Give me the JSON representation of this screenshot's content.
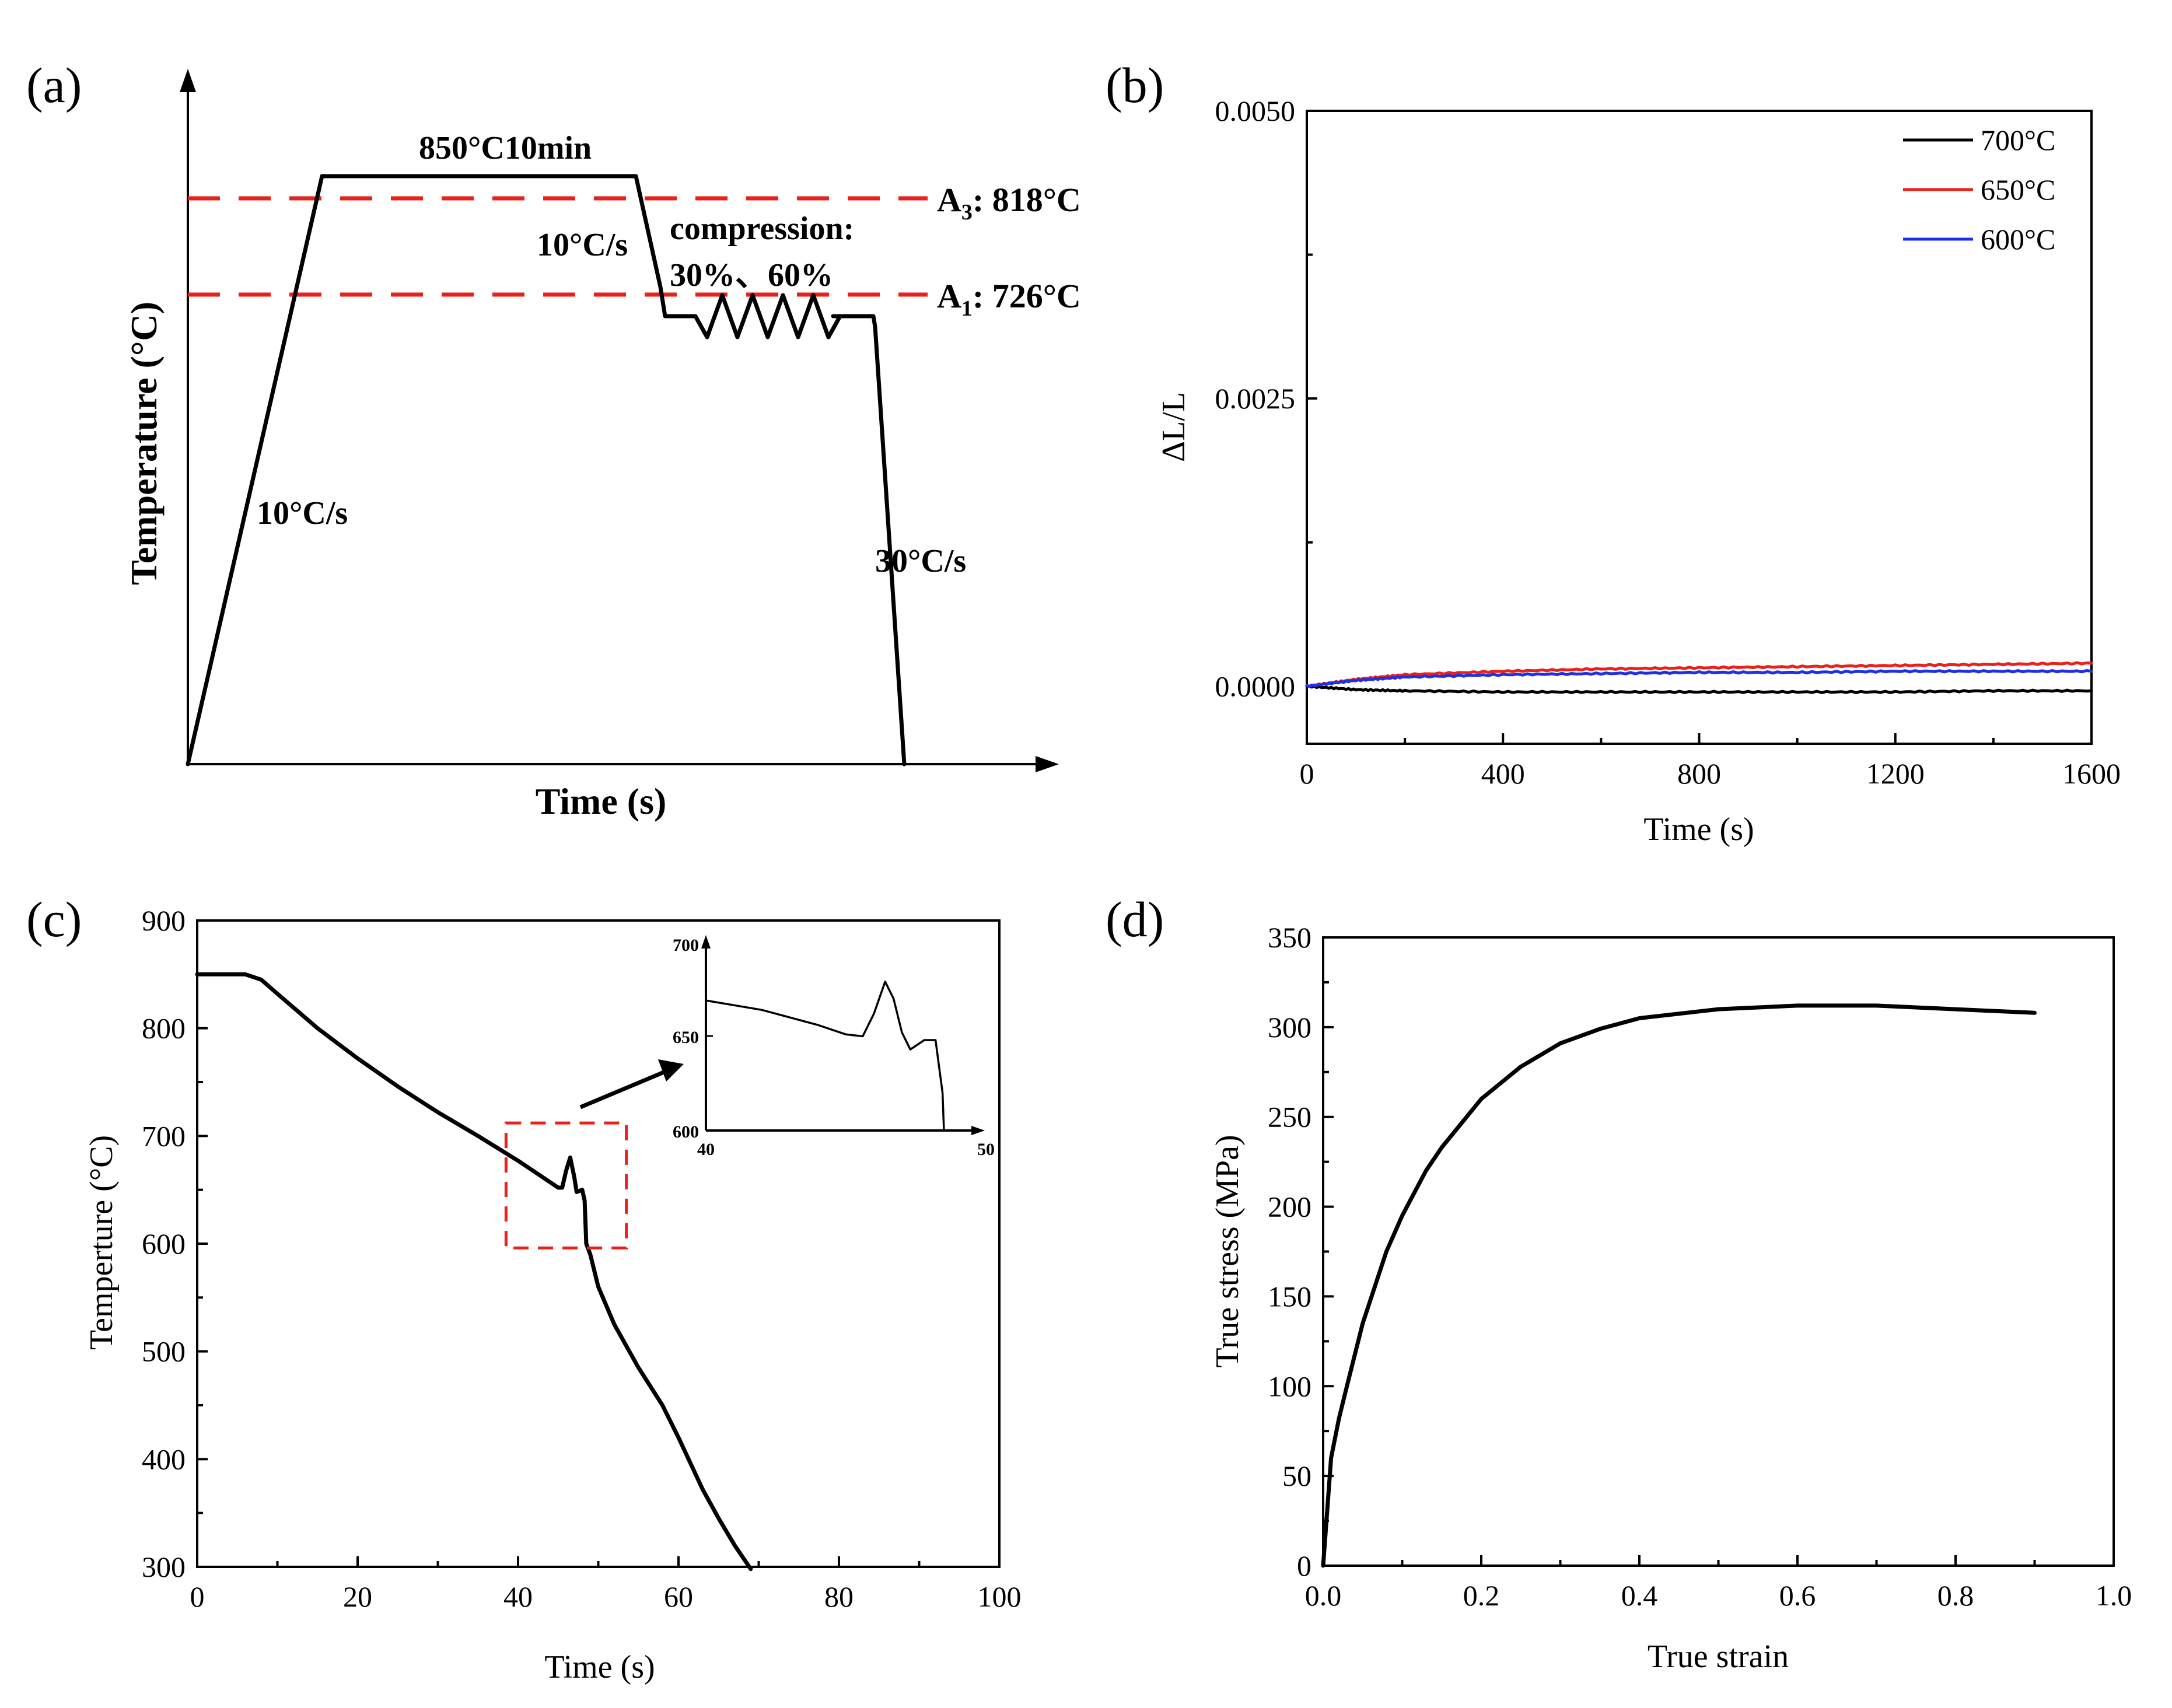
{
  "figure": {
    "panels": [
      "(a)",
      "(b)",
      "(c)",
      "(d)"
    ]
  },
  "chart_data": [
    {
      "id": "a",
      "type": "line",
      "title": "",
      "xlabel": "Time (s)",
      "ylabel": "Temperature (°C)",
      "schedule": {
        "hold_label": "850°C10min",
        "heat_rate_label": "10°C/s",
        "cool_rate_label": "10°C/s",
        "compression_label": "compression:",
        "compression_values": "30%、60%",
        "final_cool_label": "30°C/s"
      },
      "reference_lines": [
        {
          "name": "A3",
          "label_main": "A",
          "label_sub": "3",
          "label_rest": ": 818°C",
          "value": 818,
          "color": "#e8211b"
        },
        {
          "name": "A1",
          "label_main": "A",
          "label_sub": "1",
          "label_rest": ": 726°C",
          "value": 726,
          "color": "#e8211b"
        }
      ]
    },
    {
      "id": "b",
      "type": "line",
      "xlabel": "Time (s)",
      "ylabel": "ΔL/L",
      "xlim": [
        0,
        1600
      ],
      "ylim": [
        -0.0005,
        0.005
      ],
      "xticks": [
        0,
        400,
        800,
        1200,
        1600
      ],
      "xtick_labels": [
        "0",
        "400",
        "800",
        "1200",
        "1600"
      ],
      "yticks": [
        0,
        0.0025,
        0.005
      ],
      "ytick_labels": [
        "0.0000",
        "0.0025",
        "0.0050"
      ],
      "legend_position": "top-right",
      "series": [
        {
          "name": "700°C",
          "color": "#000000",
          "x": [
            0,
            100,
            200,
            400,
            600,
            800,
            1000,
            1200,
            1400,
            1600
          ],
          "values": [
            0,
            -3e-05,
            -4e-05,
            -5e-05,
            -5e-05,
            -5e-05,
            -5e-05,
            -5e-05,
            -4e-05,
            -4e-05
          ]
        },
        {
          "name": "650°C",
          "color": "#e8211b",
          "x": [
            0,
            100,
            200,
            400,
            600,
            800,
            1000,
            1200,
            1400,
            1600
          ],
          "values": [
            0,
            6e-05,
            0.0001,
            0.00013,
            0.00015,
            0.00016,
            0.00017,
            0.00018,
            0.00019,
            0.0002
          ]
        },
        {
          "name": "600°C",
          "color": "#1f2fe6",
          "x": [
            0,
            100,
            200,
            400,
            600,
            800,
            1000,
            1200,
            1400,
            1600
          ],
          "values": [
            0,
            5e-05,
            8e-05,
            0.0001,
            0.00011,
            0.00012,
            0.00012,
            0.00013,
            0.00013,
            0.00013
          ]
        }
      ]
    },
    {
      "id": "c",
      "type": "line",
      "xlabel": "Time (s)",
      "ylabel": "Temperture (°C)",
      "xlim": [
        0,
        100
      ],
      "ylim": [
        300,
        900
      ],
      "xticks": [
        0,
        20,
        40,
        60,
        80,
        100
      ],
      "xtick_labels": [
        "0",
        "20",
        "40",
        "60",
        "80",
        "100"
      ],
      "yticks": [
        300,
        400,
        500,
        600,
        700,
        800,
        900
      ],
      "ytick_labels": [
        "300",
        "400",
        "500",
        "600",
        "700",
        "800",
        "900"
      ],
      "series": [
        {
          "name": "temperature",
          "x": [
            0,
            3,
            6,
            8,
            10,
            15,
            20,
            25,
            30,
            35,
            40,
            43,
            45,
            45.5,
            46,
            46.5,
            47,
            47.3,
            48,
            48.3,
            48.5,
            49,
            50,
            52,
            55,
            58,
            60,
            63,
            65,
            67,
            69
          ],
          "values": [
            850,
            850,
            850,
            845,
            832,
            800,
            772,
            746,
            722,
            700,
            677,
            662,
            652,
            652,
            668,
            680,
            662,
            648,
            650,
            640,
            600,
            590,
            560,
            525,
            485,
            450,
            420,
            372,
            345,
            320,
            298
          ]
        }
      ],
      "highlight_box": {
        "x_range": [
          38.5,
          53.5
        ],
        "y_range": [
          596,
          712
        ],
        "color": "#e8211b"
      },
      "inset": {
        "xlim": [
          40,
          50
        ],
        "ylim": [
          600,
          700
        ],
        "xtick_labels": [
          "40",
          "50"
        ],
        "ytick_labels": [
          "600",
          "650",
          "700"
        ],
        "x": [
          40,
          42,
          44,
          45,
          45.6,
          46,
          46.4,
          46.7,
          47,
          47.3,
          47.8,
          48.2,
          48.45,
          48.5
        ],
        "values": [
          669,
          664,
          656,
          651,
          650,
          662,
          679,
          670,
          652,
          643,
          648,
          648,
          620,
          600
        ]
      }
    },
    {
      "id": "d",
      "type": "line",
      "xlabel": "True strain",
      "ylabel": "True stress (MPa)",
      "xlim": [
        0,
        1.0
      ],
      "ylim": [
        0,
        350
      ],
      "xticks": [
        0,
        0.2,
        0.4,
        0.6,
        0.8,
        1.0
      ],
      "xtick_labels": [
        "0.0",
        "0.2",
        "0.4",
        "0.6",
        "0.8",
        "1.0"
      ],
      "yticks": [
        0,
        50,
        100,
        150,
        200,
        250,
        300,
        350
      ],
      "ytick_labels": [
        "0",
        "50",
        "100",
        "150",
        "200",
        "250",
        "300",
        "350"
      ],
      "series": [
        {
          "name": "stress-strain",
          "x": [
            0,
            0.005,
            0.01,
            0.02,
            0.03,
            0.05,
            0.08,
            0.1,
            0.13,
            0.15,
            0.2,
            0.25,
            0.3,
            0.35,
            0.4,
            0.5,
            0.6,
            0.65,
            0.7,
            0.8,
            0.85,
            0.9
          ],
          "values": [
            0,
            30,
            60,
            82,
            100,
            135,
            175,
            195,
            220,
            233,
            260,
            278,
            291,
            299,
            305,
            310,
            312,
            312,
            312,
            310,
            309,
            308
          ]
        }
      ]
    }
  ]
}
